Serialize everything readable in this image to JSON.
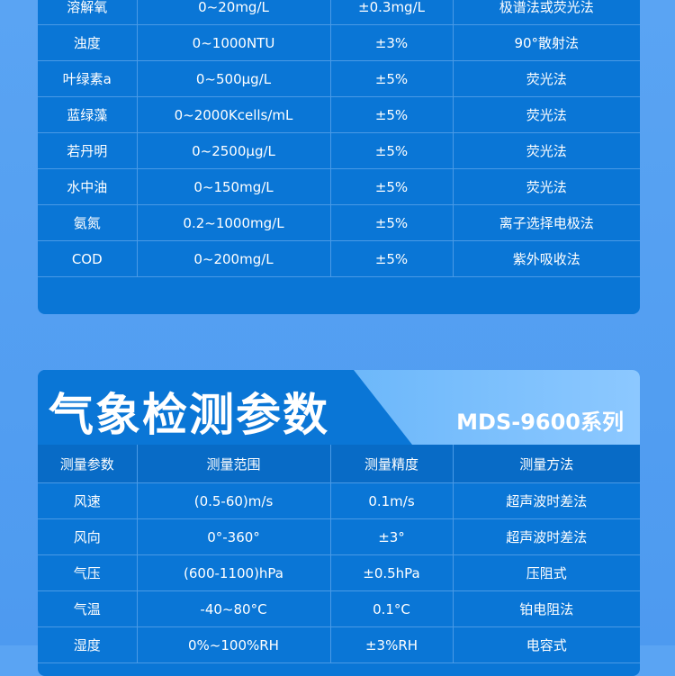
{
  "water_table": {
    "rows": [
      [
        "溶解氧",
        "0~20mg/L",
        "±0.3mg/L",
        "极谱法或荧光法"
      ],
      [
        "浊度",
        "0~1000NTU",
        "±3%",
        "90°散射法"
      ],
      [
        "叶绿素a",
        "0~500μg/L",
        "±5%",
        "荧光法"
      ],
      [
        "蓝绿藻",
        "0~2000Kcells/mL",
        "±5%",
        "荧光法"
      ],
      [
        "若丹明",
        "0~2500μg/L",
        "±5%",
        "荧光法"
      ],
      [
        "水中油",
        "0~150mg/L",
        "±5%",
        "荧光法"
      ],
      [
        "氨氮",
        "0.2~1000mg/L",
        "±5%",
        "离子选择电极法"
      ],
      [
        "COD",
        "0~200mg/L",
        "±5%",
        "紫外吸收法"
      ]
    ]
  },
  "weather": {
    "title": "气象检测参数",
    "series": "MDS-9600系列",
    "headers": [
      "测量参数",
      "测量范围",
      "测量精度",
      "测量方法"
    ],
    "rows": [
      [
        "风速",
        "(0.5-60)m/s",
        "0.1m/s",
        "超声波时差法"
      ],
      [
        "风向",
        "0°-360°",
        "±3°",
        "超声波时差法"
      ],
      [
        "气压",
        "(600-1100)hPa",
        "±0.5hPa",
        "压阻式"
      ],
      [
        "气温",
        "-40~80°C",
        "0.1°C",
        "铂电阻法"
      ],
      [
        "湿度",
        "0%~100%RH",
        "±3%RH",
        "电容式"
      ]
    ]
  }
}
